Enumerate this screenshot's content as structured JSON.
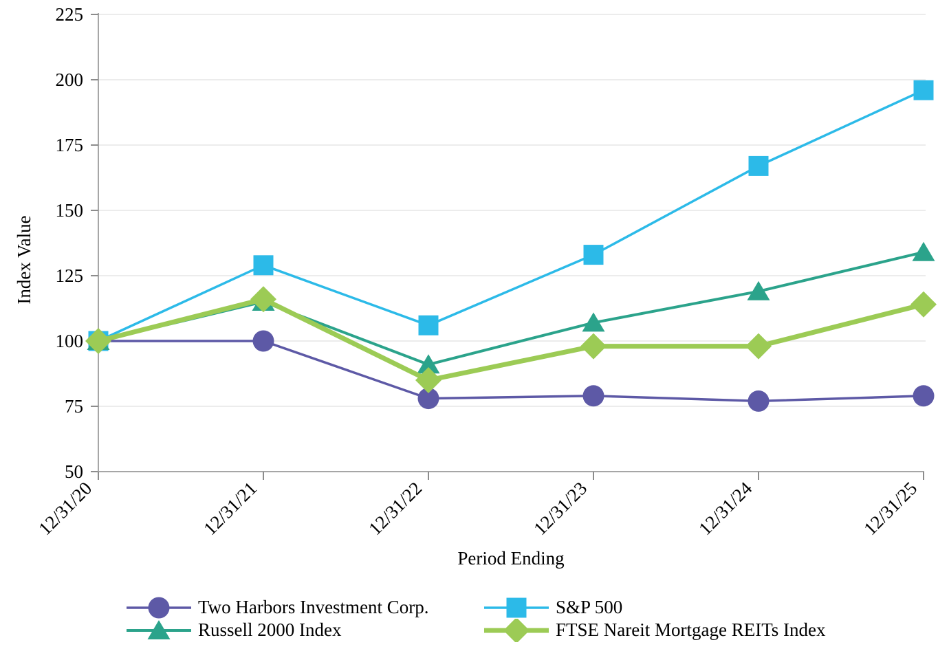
{
  "chart_data": {
    "type": "line",
    "title": "",
    "xlabel": "Period Ending",
    "ylabel": "Index Value",
    "categories": [
      "12/31/20",
      "12/31/21",
      "12/31/22",
      "12/31/23",
      "12/31/24",
      "12/31/25"
    ],
    "ylim": [
      50,
      225
    ],
    "yticks": [
      50,
      75,
      100,
      125,
      150,
      175,
      200,
      225
    ],
    "grid": "horizontal light gray lines at each y tick",
    "legend_position": "bottom, two columns",
    "series": [
      {
        "name": "Two Harbors Investment Corp.",
        "marker": "circle",
        "color": "#5D59A6",
        "line_width": 3.5,
        "values": [
          100,
          100,
          78,
          79,
          77,
          79
        ]
      },
      {
        "name": "S&P 500",
        "marker": "square",
        "color": "#2CBAE8",
        "line_width": 3.5,
        "values": [
          100,
          129,
          106,
          133,
          167,
          196
        ]
      },
      {
        "name": "Russell 2000 Index",
        "marker": "triangle",
        "color": "#2BA38B",
        "line_width": 4,
        "values": [
          100,
          115,
          91,
          107,
          119,
          134
        ]
      },
      {
        "name": "FTSE Nareit Mortgage REITs Index",
        "marker": "diamond",
        "color": "#9CCB55",
        "line_width": 7,
        "values": [
          100,
          116,
          85,
          98,
          98,
          114
        ]
      }
    ],
    "colors": {
      "axis_line": "#A6A6A6",
      "tick_mark": "#8C8C8C",
      "gridline": "#ECECEC",
      "text": "#000000",
      "background": "#FFFFFF"
    }
  }
}
